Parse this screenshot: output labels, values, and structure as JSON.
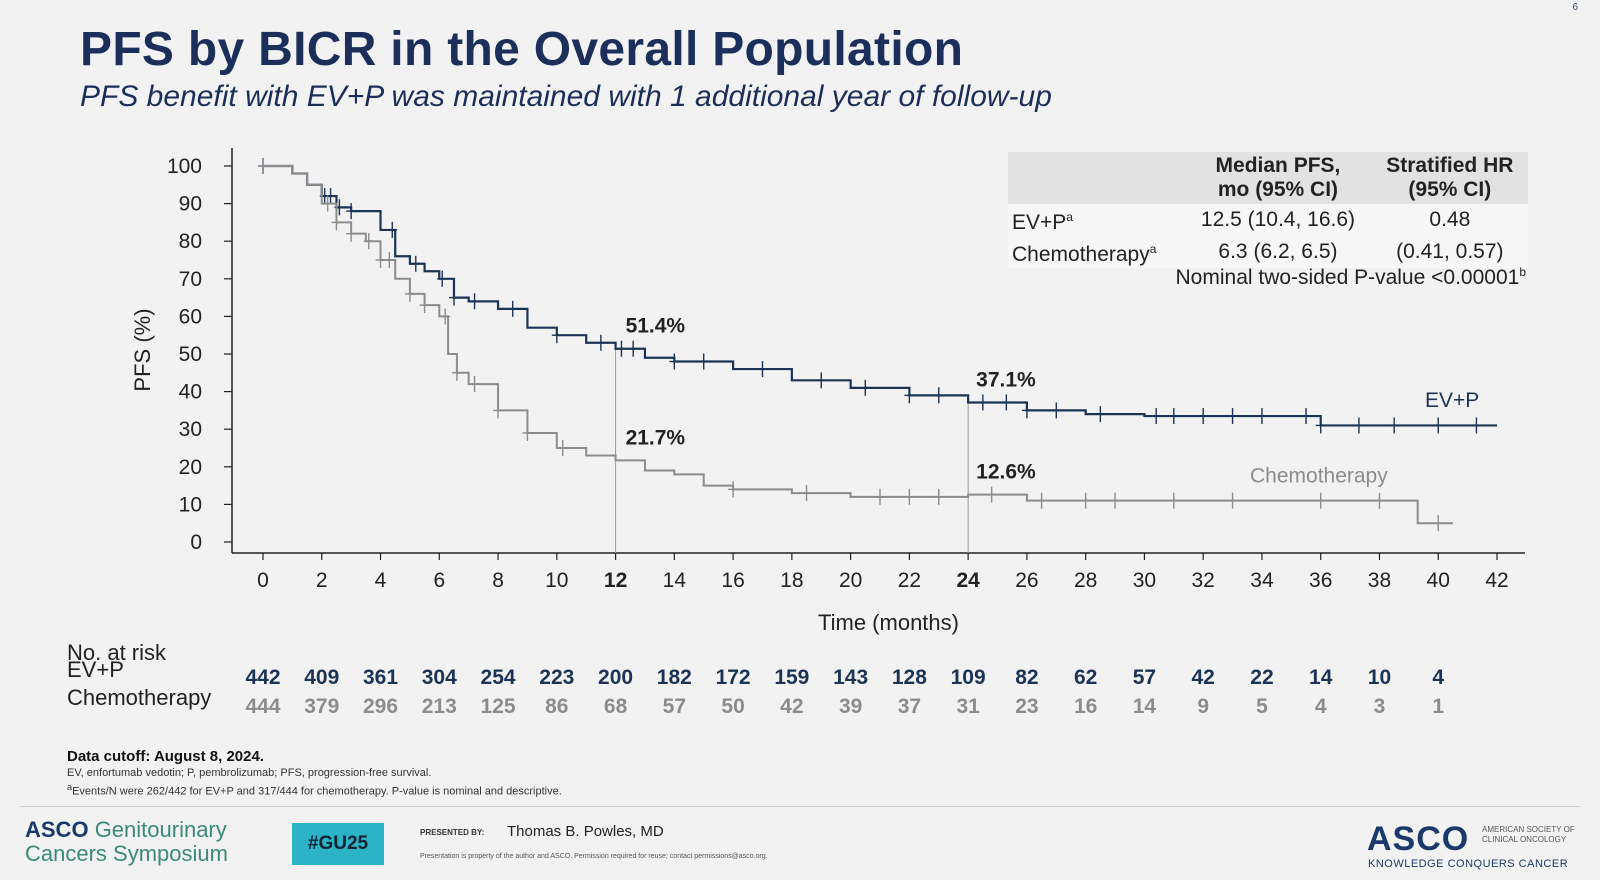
{
  "slide_number": "6",
  "title": "PFS by BICR in the Overall Population",
  "subtitle": "PFS benefit with EV+P was maintained with 1 additional year of follow-up",
  "stats_table": {
    "headers": [
      "",
      "Median PFS,\nmo (95% CI)",
      "Stratified HR\n(95% CI)"
    ],
    "header_line1": [
      "Median PFS,",
      "Stratified HR"
    ],
    "header_line2": [
      "mo (95% CI)",
      "(95% CI)"
    ],
    "rows": [
      {
        "label": "EV+P",
        "sup": "a",
        "median": "12.5 (10.4, 16.6)",
        "hr": "0.48"
      },
      {
        "label": "Chemotherapy",
        "sup": "a",
        "median": "6.3 (6.2, 6.5)",
        "hr": "(0.41, 0.57)"
      }
    ],
    "pvalue": "Nominal two-sided P-value <0.00001",
    "pvalue_sup": "b"
  },
  "chart_data": {
    "type": "line",
    "xlabel": "Time (months)",
    "ylabel": "PFS (%)",
    "xlim": [
      0,
      42
    ],
    "ylim": [
      0,
      100
    ],
    "xticks": [
      0,
      2,
      4,
      6,
      8,
      10,
      12,
      14,
      16,
      18,
      20,
      22,
      24,
      26,
      28,
      30,
      32,
      34,
      36,
      38,
      40,
      42
    ],
    "xticks_bold": [
      12,
      24
    ],
    "yticks": [
      0,
      10,
      20,
      30,
      40,
      50,
      60,
      70,
      80,
      90,
      100
    ],
    "series": [
      {
        "name": "EV+P",
        "color": "#1b3456",
        "x": [
          0,
          1,
          1.5,
          2,
          2.5,
          3,
          4,
          4.5,
          5,
          5.5,
          6,
          6.5,
          7,
          8,
          9,
          10,
          11,
          12,
          13,
          14,
          16,
          18,
          20,
          22,
          24,
          26,
          28,
          30,
          32,
          34,
          36,
          38,
          40,
          41,
          42
        ],
        "y": [
          100,
          98,
          95,
          92,
          89,
          88,
          83,
          76,
          74,
          72,
          70,
          65,
          64,
          62,
          57,
          55,
          53,
          51.4,
          49,
          48,
          46,
          43,
          41,
          39,
          37.1,
          35,
          34,
          33.5,
          33.5,
          33.5,
          31,
          31,
          31,
          31,
          31
        ],
        "censor_x": [
          0,
          2.1,
          2.3,
          2.6,
          3,
          4.4,
          5.2,
          6.1,
          6.5,
          7.2,
          8.5,
          10,
          11.5,
          12.2,
          12.6,
          14,
          15,
          17,
          19,
          20.5,
          22,
          23,
          24.5,
          25.3,
          26,
          27,
          28.5,
          30.4,
          31,
          32,
          33,
          34,
          35.5,
          36,
          37.3,
          38.5,
          40,
          41.3
        ]
      },
      {
        "name": "Chemotherapy",
        "color": "#8c8c8c",
        "x": [
          0,
          1,
          1.5,
          2,
          2.5,
          3,
          3.5,
          4,
          4.5,
          5,
          5.5,
          6,
          6.3,
          6.6,
          7,
          8,
          9,
          10,
          11,
          12,
          13,
          14,
          15,
          16,
          18,
          20,
          22,
          24,
          26,
          28,
          30,
          32,
          34,
          36,
          38,
          39.3,
          39.3,
          40.5
        ],
        "y": [
          100,
          98,
          95,
          90,
          85,
          82,
          80,
          75,
          70,
          66,
          63,
          60,
          50,
          45,
          42,
          35,
          29,
          25,
          23,
          21.7,
          19,
          18,
          15,
          14,
          13,
          12,
          12,
          12.6,
          11,
          11,
          11,
          11,
          11,
          11,
          11,
          11,
          5,
          5
        ],
        "censor_x": [
          0,
          2.2,
          2.5,
          3,
          3.6,
          4,
          4.3,
          5,
          5.5,
          6.2,
          6.6,
          7.2,
          8,
          9,
          10.2,
          16,
          18.5,
          21,
          22,
          23,
          24.8,
          26.5,
          28,
          29,
          31,
          33,
          36,
          38,
          40
        ]
      }
    ],
    "annotations": [
      {
        "text": "51.4%",
        "x": 12,
        "y": 51.4
      },
      {
        "text": "21.7%",
        "x": 12,
        "y": 21.7
      },
      {
        "text": "37.1%",
        "x": 24,
        "y": 37.1
      },
      {
        "text": "12.6%",
        "x": 24,
        "y": 12.6
      }
    ],
    "series_labels": [
      "EV+P",
      "Chemotherapy"
    ]
  },
  "at_risk": {
    "header": "No. at risk",
    "rows": [
      {
        "label": "EV+P",
        "color": "#1b3456",
        "values": [
          442,
          409,
          361,
          304,
          254,
          223,
          200,
          182,
          172,
          159,
          143,
          128,
          109,
          82,
          62,
          57,
          42,
          22,
          14,
          10,
          4
        ]
      },
      {
        "label": "Chemotherapy",
        "color": "#8c8c8c",
        "values": [
          444,
          379,
          296,
          213,
          125,
          86,
          68,
          57,
          50,
          42,
          39,
          37,
          31,
          23,
          16,
          14,
          9,
          5,
          4,
          3,
          1
        ]
      }
    ]
  },
  "footnotes": {
    "cutoff": "Data cutoff: August 8, 2024.",
    "abbrev": "EV, enfortumab vedotin; P, pembrolizumab; PFS, progression-free survival.",
    "events": "Events/N were 262/442 for EV+P and 317/444 for chemotherapy. P-value is nominal and descriptive.",
    "events_sup_a": "a",
    "events_sup_b": "b"
  },
  "footer": {
    "symposium_line1_brand": "ASCO",
    "symposium_line1_rest": "Genitourinary",
    "symposium_line2": "Cancers Symposium",
    "hashtag": "#GU25",
    "presented_by": "PRESENTED BY:",
    "presenter": "Thomas B. Powles, MD",
    "disclaimer": "Presentation is property of the author and ASCO. Permission required for reuse; contact permissions@asco.org.",
    "logo": "ASCO",
    "logo_sub": "AMERICAN SOCIETY OF CLINICAL ONCOLOGY",
    "tagline": "KNOWLEDGE CONQUERS CANCER"
  }
}
